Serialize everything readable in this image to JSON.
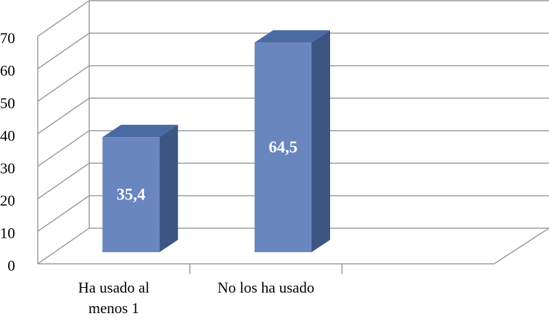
{
  "chart_data": {
    "type": "bar3d",
    "categories": [
      "Ha usado al menos 1",
      "No los ha usado"
    ],
    "values": [
      35.4,
      64.5
    ],
    "value_labels": [
      "35,4",
      "64,5"
    ],
    "color": "#6a86bf",
    "ylim": [
      0,
      70
    ],
    "yticks": [
      0,
      10,
      20,
      30,
      40,
      50,
      60,
      70
    ],
    "grid": true
  }
}
